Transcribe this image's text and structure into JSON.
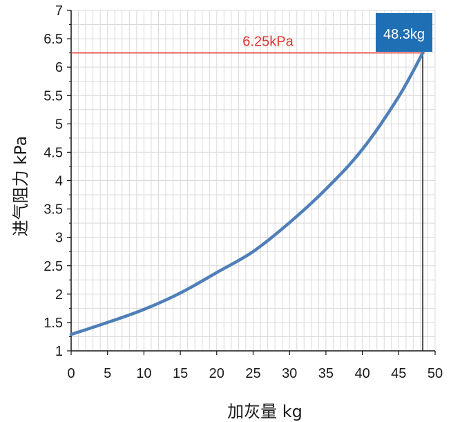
{
  "chart_data": {
    "type": "line",
    "xlabel": "加灰量 kg",
    "ylabel": "进气阻力 kPa",
    "xlim": [
      0,
      50
    ],
    "ylim": [
      1,
      7
    ],
    "x_ticks": [
      0,
      5,
      10,
      15,
      20,
      25,
      30,
      35,
      40,
      45,
      50
    ],
    "y_ticks": [
      1,
      1.5,
      2,
      2.5,
      3,
      3.5,
      4,
      4.5,
      5,
      5.5,
      6,
      6.5,
      7
    ],
    "x_tick_labels": [
      "0",
      "5",
      "10",
      "15",
      "20",
      "25",
      "30",
      "35",
      "40",
      "45",
      "50"
    ],
    "y_tick_labels": [
      "1",
      "1.5",
      "2",
      "2.5",
      "3",
      "3.5",
      "4",
      "4.5",
      "5",
      "5.5",
      "6",
      "6.5",
      "7"
    ],
    "grid": true,
    "series": [
      {
        "color": "#4f7fb8",
        "x": [
          0,
          5,
          10,
          15,
          20,
          25,
          30,
          35,
          40,
          45,
          48.3
        ],
        "y": [
          1.29,
          1.5,
          1.73,
          2.02,
          2.38,
          2.75,
          3.26,
          3.85,
          4.55,
          5.48,
          6.25
        ]
      }
    ],
    "annotations": {
      "h_line": {
        "y": 6.25,
        "label": "6.25kPa",
        "color": "#e0312b"
      },
      "v_line": {
        "x": 48.3,
        "color": "#111111"
      },
      "point_label": {
        "text": "48.3kg",
        "background": "#1f6fb5",
        "text_color": "#ffffff"
      }
    }
  }
}
